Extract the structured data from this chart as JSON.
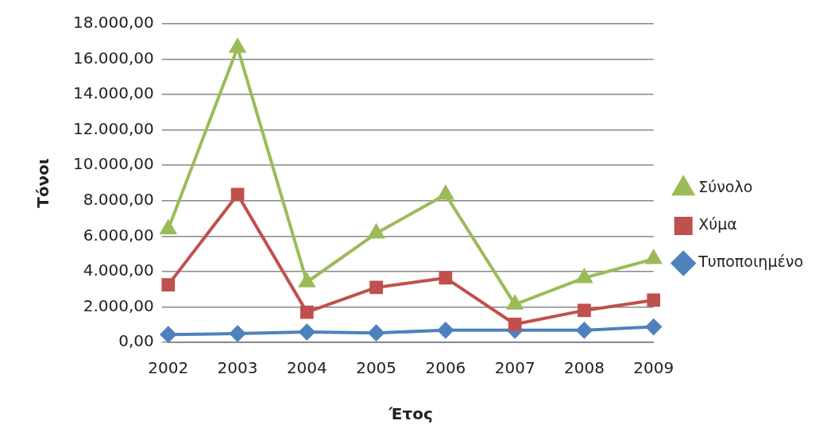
{
  "chart_data": {
    "type": "line",
    "xlabel": "Έτος",
    "ylabel": "Τόνοι",
    "categories": [
      "2002",
      "2003",
      "2004",
      "2005",
      "2006",
      "2007",
      "2008",
      "2009"
    ],
    "series": [
      {
        "name": "Σύνολο",
        "color": "#9bbb59",
        "marker": "triangle",
        "values": [
          6400,
          16650,
          3400,
          6160,
          8350,
          2140,
          3640,
          4710
        ]
      },
      {
        "name": "Χύμα",
        "color": "#c0504d",
        "marker": "square",
        "values": [
          3250,
          8350,
          1700,
          3100,
          3640,
          1020,
          1800,
          2380
        ]
      },
      {
        "name": "Τυποποιημένο",
        "color": "#4f81bd",
        "marker": "diamond",
        "values": [
          440,
          490,
          580,
          530,
          680,
          680,
          680,
          870
        ]
      }
    ],
    "ylim": [
      0,
      18000
    ],
    "yticks": [
      {
        "value": 0,
        "label": "0,00"
      },
      {
        "value": 2000,
        "label": "2.000,00"
      },
      {
        "value": 4000,
        "label": "4.000,00"
      },
      {
        "value": 6000,
        "label": "6.000,00"
      },
      {
        "value": 8000,
        "label": "8.000,00"
      },
      {
        "value": 10000,
        "label": "10.000,00"
      },
      {
        "value": 12000,
        "label": "12.000,00"
      },
      {
        "value": 14000,
        "label": "14.000,00"
      },
      {
        "value": 16000,
        "label": "16.000,00"
      },
      {
        "value": 18000,
        "label": "18.000,00"
      }
    ],
    "grid": "y",
    "legend": "right"
  }
}
